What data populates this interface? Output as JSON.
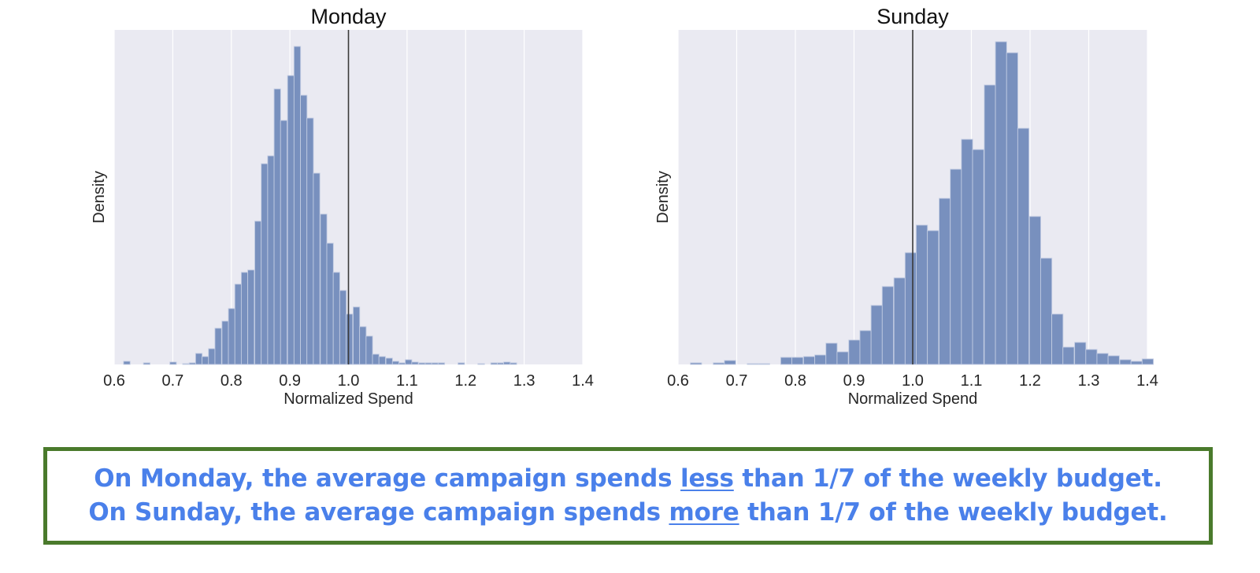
{
  "chart_data": [
    {
      "type": "bar",
      "subtype": "histogram",
      "title": "Monday",
      "xlabel": "Normalized Spend",
      "ylabel": "Density",
      "xlim": [
        0.6,
        1.4
      ],
      "xticks": [
        "0.6",
        "0.7",
        "0.8",
        "0.9",
        "1.0",
        "1.1",
        "1.2",
        "1.3",
        "1.4"
      ],
      "yticks": [],
      "grid": true,
      "reference_line_x": 1.0,
      "bin_width": 0.0112,
      "bins_start": [
        0.616,
        0.65,
        0.695,
        0.717,
        0.728,
        0.739,
        0.75,
        0.761,
        0.772,
        0.784,
        0.795,
        0.806,
        0.817,
        0.828,
        0.84,
        0.851,
        0.862,
        0.873,
        0.884,
        0.896,
        0.907,
        0.918,
        0.929,
        0.94,
        0.952,
        0.963,
        0.974,
        0.985,
        0.996,
        1.008,
        1.019,
        1.03,
        1.041,
        1.052,
        1.064,
        1.075,
        1.086,
        1.097,
        1.108,
        1.12,
        1.131,
        1.142,
        1.153,
        1.187,
        1.221,
        1.243,
        1.254,
        1.265,
        1.276
      ],
      "values": [
        4,
        2,
        3,
        1,
        2,
        14,
        10,
        20,
        46,
        55,
        71,
        102,
        117,
        120,
        182,
        255,
        265,
        350,
        310,
        367,
        404,
        342,
        313,
        243,
        191,
        154,
        117,
        94,
        64,
        73,
        48,
        36,
        13,
        10,
        8,
        4,
        2,
        6,
        3,
        2,
        2,
        2,
        2,
        2,
        1,
        2,
        2,
        3,
        2
      ],
      "value_units": "relative density (pixel height, max≈404 of 425)"
    },
    {
      "type": "bar",
      "subtype": "histogram",
      "title": "Sunday",
      "xlabel": "Normalized Spend",
      "ylabel": "Density",
      "xlim": [
        0.6,
        1.4
      ],
      "xticks": [
        "0.6",
        "0.7",
        "0.8",
        "0.9",
        "1.0",
        "1.1",
        "1.2",
        "1.3",
        "1.4"
      ],
      "yticks": [],
      "grid": true,
      "reference_line_x": 1.0,
      "bin_width": 0.0192,
      "bins_start": [
        0.621,
        0.66,
        0.679,
        0.718,
        0.737,
        0.775,
        0.794,
        0.814,
        0.833,
        0.852,
        0.871,
        0.891,
        0.91,
        0.929,
        0.948,
        0.968,
        0.987,
        1.006,
        1.025,
        1.045,
        1.064,
        1.083,
        1.102,
        1.122,
        1.141,
        1.16,
        1.179,
        1.199,
        1.218,
        1.237,
        1.256,
        1.276,
        1.295,
        1.314,
        1.333,
        1.353,
        1.372,
        1.391
      ],
      "values": [
        2,
        2,
        5,
        1,
        1,
        9,
        9,
        10,
        12,
        27,
        16,
        31,
        43,
        75,
        99,
        110,
        142,
        177,
        170,
        211,
        248,
        286,
        273,
        355,
        410,
        396,
        300,
        188,
        135,
        64,
        22,
        28,
        19,
        14,
        11,
        6,
        4,
        7
      ],
      "value_units": "relative density (pixel height, max≈410 of 425)"
    }
  ],
  "charts": {
    "monday": {
      "title": "Monday",
      "xlabel": "Normalized Spend",
      "ylabel": "Density",
      "ticks": [
        "0.6",
        "0.7",
        "0.8",
        "0.9",
        "1.0",
        "1.1",
        "1.2",
        "1.3",
        "1.4"
      ]
    },
    "sunday": {
      "title": "Sunday",
      "xlabel": "Normalized Spend",
      "ylabel": "Density",
      "ticks": [
        "0.6",
        "0.7",
        "0.8",
        "0.9",
        "1.0",
        "1.1",
        "1.2",
        "1.3",
        "1.4"
      ]
    }
  },
  "caption": {
    "line1": {
      "pre": "On Monday, the average campaign spends ",
      "emph": "less",
      "post": " than 1/7 of the weekly budget."
    },
    "line2": {
      "pre": "On Sunday, the average campaign spends ",
      "emph": "more",
      "post": " than 1/7 of the weekly budget."
    }
  },
  "colors": {
    "plot_bg": "#eaeaf2",
    "bar_fill": "#7890be",
    "bar_edge": "#c3cde3",
    "grid": "#ffffff",
    "ref_line": "#3a3a3a",
    "caption_text": "#4a80ea",
    "caption_border": "#4a7a2c"
  }
}
